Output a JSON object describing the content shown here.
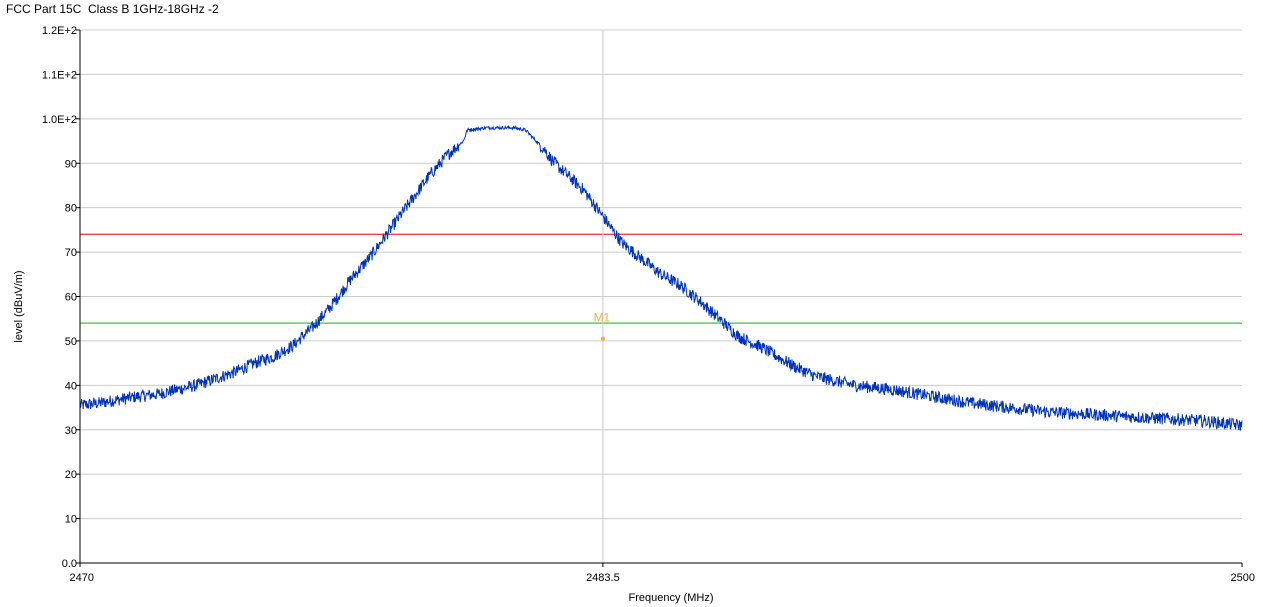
{
  "chart_data": {
    "type": "line",
    "title": "FCC Part 15C  Class B 1GHz-18GHz -2",
    "xlabel": "Frequency (MHz)",
    "ylabel": "level (dBuV/m)",
    "xlim": [
      2470,
      2500
    ],
    "ylim": [
      0,
      120
    ],
    "x_ticks": [
      {
        "value": 2470,
        "label": "2470"
      },
      {
        "value": 2483.5,
        "label": "2483.5"
      },
      {
        "value": 2500,
        "label": "2500"
      }
    ],
    "y_ticks": [
      {
        "value": 0,
        "label": "0.0"
      },
      {
        "value": 10,
        "label": "10"
      },
      {
        "value": 20,
        "label": "20"
      },
      {
        "value": 30,
        "label": "30"
      },
      {
        "value": 40,
        "label": "40"
      },
      {
        "value": 50,
        "label": "50"
      },
      {
        "value": 60,
        "label": "60"
      },
      {
        "value": 70,
        "label": "70"
      },
      {
        "value": 80,
        "label": "80"
      },
      {
        "value": 90,
        "label": "90"
      },
      {
        "value": 100,
        "label": "1.0E+2"
      },
      {
        "value": 110,
        "label": "1.1E+2"
      },
      {
        "value": 120,
        "label": "1.2E+2"
      }
    ],
    "grid": true,
    "series": [
      {
        "color": "#0033bb",
        "x": [
          2470.0,
          2470.5,
          2471.0,
          2471.5,
          2472.0,
          2472.5,
          2473.0,
          2473.5,
          2474.0,
          2474.5,
          2475.0,
          2475.5,
          2475.8,
          2476.0,
          2476.5,
          2477.0,
          2477.5,
          2478.0,
          2478.5,
          2479.0,
          2479.5,
          2479.9,
          2480.0,
          2480.5,
          2481.0,
          2481.2,
          2481.5,
          2482.0,
          2482.2,
          2482.5,
          2483.0,
          2483.5,
          2484.0,
          2484.5,
          2485.0,
          2485.5,
          2486.0,
          2486.5,
          2487.0,
          2487.5,
          2488.0,
          2488.5,
          2489.0,
          2490.0,
          2491.0,
          2492.0,
          2493.0,
          2494.0,
          2495.0,
          2496.0,
          2497.0,
          2498.0,
          2499.0,
          2500.0
        ],
        "y": [
          35.5,
          36.0,
          36.8,
          37.5,
          38.0,
          39.0,
          40.0,
          41.5,
          43.0,
          45.0,
          46.5,
          49.0,
          51.5,
          53.0,
          58.0,
          64.0,
          69.0,
          75.0,
          81.0,
          87.0,
          92.0,
          95.0,
          97.5,
          98.0,
          98.0,
          98.0,
          97.5,
          93.0,
          90.5,
          88.0,
          84.0,
          78.0,
          72.0,
          68.5,
          65.0,
          62.5,
          59.0,
          55.0,
          51.0,
          49.0,
          46.5,
          44.0,
          42.0,
          40.0,
          39.0,
          37.5,
          36.0,
          35.0,
          34.0,
          33.5,
          33.0,
          32.5,
          32.0,
          31.0
        ]
      }
    ],
    "limit_lines": [
      {
        "value": 74,
        "color": "#ee4444"
      },
      {
        "value": 54,
        "color": "#33cc33"
      }
    ],
    "markers": [
      {
        "label": "M1",
        "x": 2483.5,
        "y": 50.5,
        "color": "#f0b050"
      }
    ],
    "cursor_x": 2483.5,
    "noise_amplitude": 1.4
  }
}
